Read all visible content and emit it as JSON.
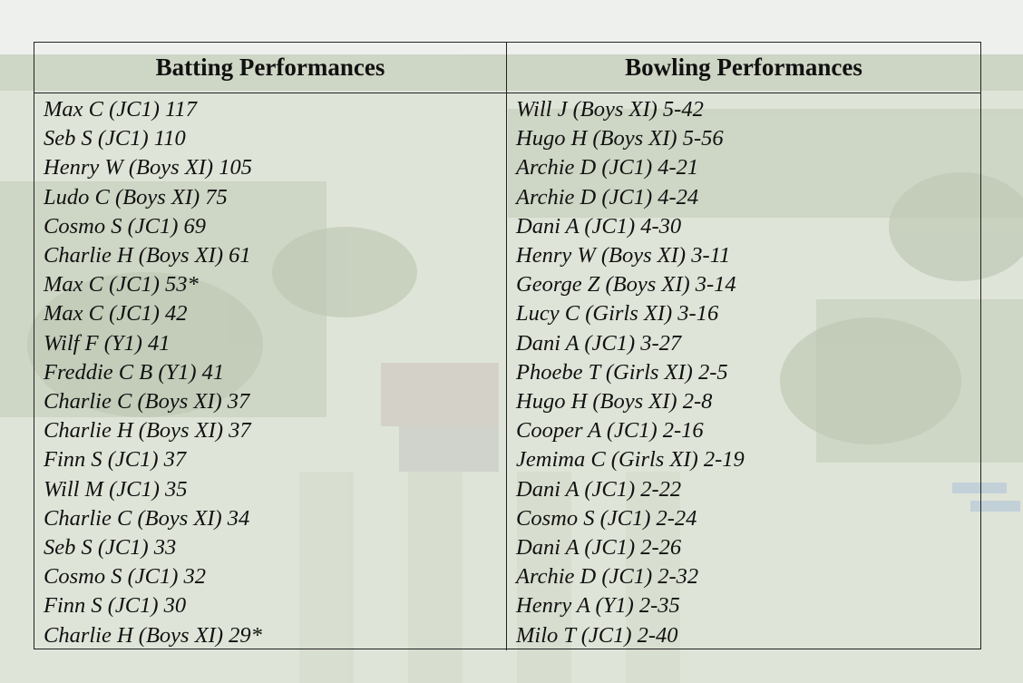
{
  "table": {
    "batting_header": "Batting Performances",
    "bowling_header": "Bowling Performances",
    "batting": [
      "Max C (JC1) 117",
      "Seb S (JC1) 110",
      "Henry W (Boys XI) 105",
      "Ludo C (Boys XI) 75",
      "Cosmo S (JC1) 69",
      "Charlie H (Boys XI) 61",
      "Max C (JC1) 53*",
      "Max C (JC1) 42",
      "Wilf F (Y1) 41",
      "Freddie C B (Y1) 41",
      "Charlie C (Boys XI) 37",
      "Charlie H (Boys XI) 37",
      "Finn S (JC1) 37",
      "Will M (JC1) 35",
      "Charlie C (Boys XI) 34",
      "Seb S (JC1) 33",
      "Cosmo S (JC1) 32",
      "Finn S (JC1) 30",
      "Charlie H (Boys XI) 29*"
    ],
    "bowling": [
      "Will J (Boys XI) 5-42",
      "Hugo H (Boys XI) 5-56",
      "Archie D (JC1) 4-21",
      "Archie D (JC1) 4-24",
      "Dani A (JC1) 4-30",
      "Henry W (Boys XI) 3-11",
      "George Z (Boys XI) 3-14",
      "Lucy C (Girls XI) 3-16",
      "Dani A (JC1) 3-27",
      "Phoebe T (Girls XI) 2-5",
      "Hugo H (Boys XI) 2-8",
      "Cooper A (JC1) 2-16",
      "Jemima C (Girls XI) 2-19",
      "Dani A (JC1) 2-22",
      "Cosmo S (JC1) 2-24",
      "Dani A (JC1) 2-26",
      "Archie D (JC1) 2-32",
      "Henry A (Y1) 2-35",
      "Milo T (JC1) 2-40"
    ]
  }
}
